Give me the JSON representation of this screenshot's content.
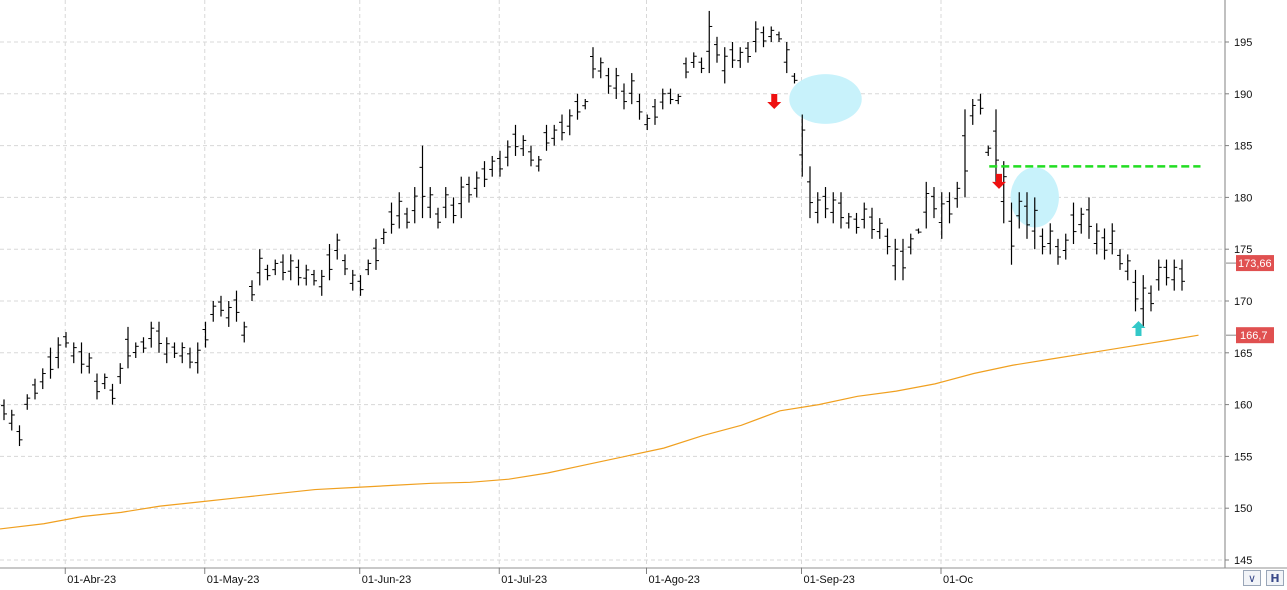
{
  "chart_data": {
    "type": "ohlc",
    "ylim": [
      144,
      198
    ],
    "y_ticks": [
      145,
      150,
      155,
      160,
      165,
      170,
      175,
      180,
      185,
      190,
      195
    ],
    "x_ticks": [
      "01-Abr-23",
      "01-May-23",
      "01-Jun-23",
      "01-Jul-23",
      "01-Ago-23",
      "01-Sep-23",
      "01-Oc"
    ],
    "x_tick_index": [
      3,
      21,
      41,
      59,
      78,
      98,
      116
    ],
    "last_price_label": "173,66",
    "ma_label": "166,7",
    "colors": {
      "bars": "#000000",
      "moving_average": "#f0a020",
      "resistance_line": "#22dd22",
      "down_arrow": "#ee1111",
      "up_arrow": "#33c8c8",
      "highlight": "#c8f2fb",
      "price_tag": "#e05050",
      "grid": "#d8d8d8"
    },
    "bars": [
      [
        160.5,
        158.5
      ],
      [
        159.5,
        157.5
      ],
      [
        158.0,
        156.0
      ],
      [
        161.0,
        159.5
      ],
      [
        162.5,
        160.5
      ],
      [
        163.5,
        161.5
      ],
      [
        165.5,
        162.5
      ],
      [
        166.5,
        163.5
      ],
      [
        167.0,
        165.5
      ],
      [
        166.0,
        164.0
      ],
      [
        166.0,
        163.0
      ],
      [
        165.0,
        163.0
      ],
      [
        163.0,
        160.5
      ],
      [
        163.0,
        161.5
      ],
      [
        162.0,
        160.0
      ],
      [
        164.0,
        162.0
      ],
      [
        167.5,
        163.5
      ],
      [
        166.0,
        164.5
      ],
      [
        166.5,
        165.0
      ],
      [
        168.0,
        165.5
      ],
      [
        168.0,
        165.0
      ],
      [
        166.5,
        164.0
      ],
      [
        166.0,
        164.5
      ],
      [
        166.0,
        164.0
      ],
      [
        165.5,
        163.5
      ],
      [
        166.0,
        163.0
      ],
      [
        168.0,
        165.5
      ],
      [
        170.0,
        168.0
      ],
      [
        170.5,
        168.5
      ],
      [
        170.0,
        167.5
      ],
      [
        171.0,
        168.0
      ],
      [
        168.0,
        166.0
      ],
      [
        172.0,
        170.0
      ],
      [
        175.0,
        171.5
      ],
      [
        173.5,
        172.0
      ],
      [
        174.0,
        172.5
      ],
      [
        174.5,
        172.0
      ],
      [
        174.5,
        172.0
      ],
      [
        174.0,
        171.5
      ],
      [
        173.5,
        171.5
      ],
      [
        173.0,
        171.5
      ],
      [
        173.0,
        170.5
      ],
      [
        175.5,
        172.0
      ],
      [
        176.5,
        174.0
      ],
      [
        174.5,
        172.5
      ],
      [
        173.0,
        171.0
      ],
      [
        172.5,
        170.5
      ],
      [
        174.0,
        172.5
      ],
      [
        176.0,
        173.0
      ],
      [
        177.0,
        175.5
      ],
      [
        179.5,
        176.5
      ],
      [
        180.5,
        177.0
      ],
      [
        179.0,
        177.0
      ],
      [
        181.0,
        177.5
      ],
      [
        185.0,
        178.0
      ],
      [
        181.0,
        178.0
      ],
      [
        179.0,
        177.0
      ],
      [
        181.0,
        178.0
      ],
      [
        180.0,
        177.5
      ],
      [
        182.0,
        178.0
      ],
      [
        182.0,
        179.5
      ],
      [
        182.5,
        180.0
      ],
      [
        183.5,
        181.0
      ],
      [
        184.0,
        182.0
      ],
      [
        184.5,
        182.0
      ],
      [
        185.5,
        183.0
      ],
      [
        187.0,
        184.0
      ],
      [
        186.0,
        184.0
      ],
      [
        185.0,
        183.0
      ],
      [
        184.0,
        182.5
      ],
      [
        187.0,
        184.5
      ],
      [
        187.0,
        185.0
      ],
      [
        188.0,
        185.5
      ],
      [
        188.5,
        186.0
      ],
      [
        190.0,
        187.5
      ],
      [
        189.5,
        188.5
      ],
      [
        194.5,
        191.5
      ],
      [
        193.5,
        191.5
      ],
      [
        192.5,
        190.0
      ],
      [
        192.5,
        189.5
      ],
      [
        191.0,
        188.5
      ],
      [
        192.0,
        189.0
      ],
      [
        190.0,
        187.5
      ],
      [
        188.0,
        186.5
      ],
      [
        189.5,
        187.0
      ],
      [
        190.5,
        188.5
      ],
      [
        190.5,
        189.0
      ],
      [
        190.0,
        189.0
      ],
      [
        193.5,
        191.5
      ],
      [
        194.0,
        192.5
      ],
      [
        193.5,
        192.0
      ],
      [
        198.0,
        192.0
      ],
      [
        195.5,
        193.0
      ],
      [
        194.5,
        191.0
      ],
      [
        195.0,
        192.5
      ],
      [
        194.5,
        192.5
      ],
      [
        195.0,
        193.0
      ],
      [
        197.0,
        194.0
      ],
      [
        196.5,
        194.5
      ],
      [
        196.5,
        195.0
      ],
      [
        196.0,
        195.0
      ],
      [
        195.0,
        192.0
      ],
      [
        192.0,
        191.0
      ],
      [
        188.0,
        182.0
      ],
      [
        183.0,
        178.0
      ],
      [
        180.5,
        177.5
      ],
      [
        181.0,
        178.0
      ],
      [
        180.5,
        177.5
      ],
      [
        180.5,
        177.0
      ],
      [
        178.5,
        177.0
      ],
      [
        178.5,
        176.5
      ],
      [
        179.5,
        177.0
      ],
      [
        179.0,
        176.0
      ],
      [
        178.0,
        176.0
      ],
      [
        177.0,
        174.5
      ],
      [
        176.0,
        172.0
      ],
      [
        176.0,
        172.0
      ],
      [
        176.5,
        174.5
      ],
      [
        177.0,
        176.5
      ],
      [
        181.5,
        177.0
      ],
      [
        181.0,
        178.0
      ],
      [
        180.5,
        176.0
      ],
      [
        180.5,
        177.5
      ],
      [
        181.5,
        179.0
      ],
      [
        188.5,
        180.0
      ],
      [
        189.5,
        187.0
      ],
      [
        190.0,
        188.0
      ],
      [
        185.0,
        184.0
      ],
      [
        188.5,
        181.5
      ],
      [
        183.5,
        177.5
      ],
      [
        179.5,
        173.5
      ],
      [
        180.5,
        177.0
      ],
      [
        180.5,
        176.0
      ],
      [
        180.0,
        175.0
      ],
      [
        177.0,
        174.5
      ],
      [
        177.5,
        174.5
      ],
      [
        176.0,
        173.5
      ],
      [
        176.5,
        174.0
      ],
      [
        179.5,
        175.5
      ],
      [
        179.0,
        176.5
      ],
      [
        180.0,
        176.0
      ],
      [
        177.5,
        174.5
      ],
      [
        177.0,
        174.0
      ],
      [
        177.5,
        174.5
      ],
      [
        175.0,
        173.0
      ],
      [
        174.5,
        172.0
      ],
      [
        173.0,
        169.0
      ],
      [
        172.5,
        167.5
      ],
      [
        171.5,
        169.0
      ],
      [
        174.0,
        171.0
      ],
      [
        174.0,
        171.5
      ],
      [
        174.0,
        171.0
      ],
      [
        174.0,
        171.0
      ]
    ],
    "moving_average": [
      [
        0,
        148.0
      ],
      [
        5,
        148.5
      ],
      [
        10,
        149.2
      ],
      [
        15,
        149.6
      ],
      [
        20,
        150.2
      ],
      [
        25,
        150.6
      ],
      [
        30,
        151.0
      ],
      [
        35,
        151.4
      ],
      [
        40,
        151.8
      ],
      [
        45,
        152.0
      ],
      [
        50,
        152.2
      ],
      [
        55,
        152.4
      ],
      [
        60,
        152.5
      ],
      [
        65,
        152.8
      ],
      [
        70,
        153.4
      ],
      [
        75,
        154.2
      ],
      [
        80,
        155.0
      ],
      [
        85,
        155.8
      ],
      [
        90,
        157.0
      ],
      [
        95,
        158.0
      ],
      [
        100,
        159.4
      ],
      [
        105,
        160.0
      ],
      [
        110,
        160.8
      ],
      [
        115,
        161.3
      ],
      [
        120,
        162.0
      ],
      [
        125,
        163.0
      ],
      [
        130,
        163.8
      ],
      [
        135,
        164.4
      ],
      [
        140,
        165.0
      ],
      [
        145,
        165.6
      ],
      [
        150,
        166.2
      ],
      [
        154,
        166.7
      ]
    ],
    "resistance_level": 183,
    "resistance_range": [
      127,
      154
    ],
    "down_arrows": [
      {
        "bar": 99,
        "price": 189.3
      },
      {
        "bar": 128,
        "price": 181.6
      }
    ],
    "up_arrows": [
      {
        "bar": 146,
        "price": 167.3
      }
    ],
    "highlights": [
      {
        "bar": 106,
        "price": 189.5,
        "rx": 3.6,
        "ry": 2.4
      },
      {
        "bar": 133,
        "price": 180.0,
        "rx": 2.4,
        "ry": 2.9
      }
    ]
  }
}
